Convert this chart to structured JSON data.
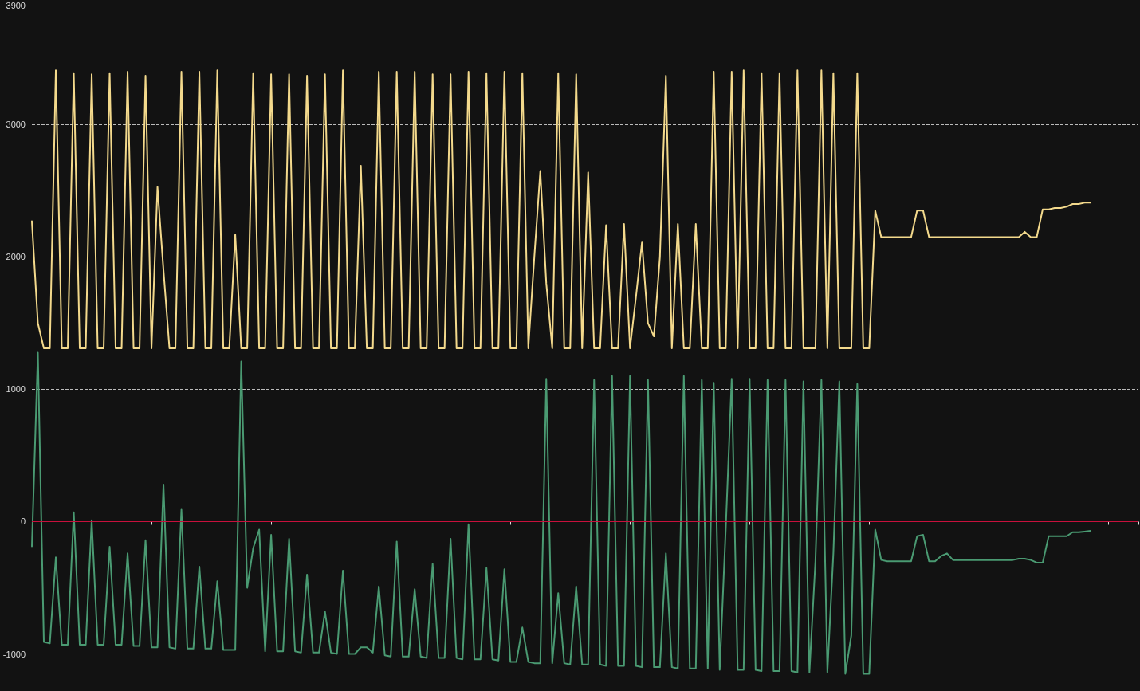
{
  "chart_data": {
    "type": "line",
    "grid": "y",
    "line_style": "solid",
    "tick_labels": "y",
    "categories": [
      null,
      null,
      null,
      null,
      null,
      null,
      null,
      null,
      null,
      null,
      null,
      null,
      null,
      null,
      null,
      null,
      null,
      null,
      null,
      null,
      null,
      null,
      null,
      null,
      null,
      null,
      null,
      null,
      null,
      null,
      null,
      null,
      null,
      null,
      null,
      null,
      null,
      null,
      null,
      null,
      null,
      null,
      null,
      null,
      null,
      null,
      null,
      null,
      null,
      null,
      null,
      null,
      null,
      null,
      null,
      null,
      null,
      null,
      null,
      null,
      null,
      null,
      null,
      null,
      null,
      null,
      null,
      null,
      null,
      null,
      null,
      null,
      null,
      null,
      null,
      null,
      null,
      null,
      null,
      null,
      null,
      null,
      null,
      null,
      null,
      null,
      null,
      null,
      null,
      null,
      null,
      null,
      null,
      null,
      null,
      null,
      null,
      null,
      null,
      null,
      null,
      null,
      null,
      null,
      null,
      null,
      null,
      null,
      null,
      null,
      null,
      null,
      null,
      null,
      null,
      null,
      null,
      null,
      null,
      null,
      null,
      null,
      null,
      null,
      null,
      null,
      null,
      null,
      null,
      null,
      null,
      null,
      null,
      null,
      null,
      null,
      null,
      null,
      null,
      null,
      null,
      null,
      null,
      null,
      null,
      null,
      null,
      null,
      null,
      null,
      null,
      null,
      null,
      null,
      null,
      null,
      null,
      null,
      null,
      null,
      null,
      null,
      null,
      null,
      null,
      null,
      null,
      null,
      null,
      null,
      null,
      null,
      null,
      null,
      null,
      null,
      null,
      null,
      null,
      null,
      null,
      null,
      null,
      null,
      null,
      null
    ],
    "ylim": [
      -1280,
      3900
    ],
    "yticks": [
      -1000,
      0,
      1000,
      2000,
      3000,
      3900
    ],
    "ref_lines": [
      {
        "axis": "y",
        "value": 0,
        "color": "#c8103c"
      }
    ],
    "series": [
      {
        "color": "#f3d98c",
        "values": [
          2270,
          1500,
          1310,
          1310,
          3410,
          1310,
          1310,
          3390,
          1310,
          1310,
          3380,
          1310,
          1310,
          3390,
          1310,
          1310,
          3400,
          1310,
          1310,
          3370,
          1310,
          2530,
          1900,
          1310,
          1310,
          3400,
          1310,
          1310,
          3400,
          1310,
          1310,
          3410,
          1310,
          1310,
          2170,
          1310,
          1310,
          3390,
          1310,
          1310,
          3380,
          1310,
          1310,
          3380,
          1310,
          1310,
          3370,
          1310,
          1310,
          3380,
          1310,
          1310,
          3410,
          1310,
          1310,
          2690,
          1310,
          1310,
          3400,
          1310,
          1310,
          3400,
          1310,
          1310,
          3400,
          1310,
          1310,
          3380,
          1310,
          1310,
          3380,
          1310,
          1310,
          3400,
          1310,
          1310,
          3390,
          1310,
          1310,
          3400,
          1310,
          1310,
          3390,
          1310,
          2000,
          2650,
          1800,
          1310,
          3390,
          1310,
          1310,
          3380,
          1310,
          2640,
          1310,
          1310,
          2240,
          1310,
          1310,
          2250,
          1310,
          1700,
          2110,
          1500,
          1400,
          2000,
          3370,
          1310,
          2250,
          1310,
          1310,
          2250,
          1310,
          1310,
          3400,
          1310,
          1310,
          3400,
          1310,
          3410,
          1310,
          1310,
          3390,
          1310,
          1310,
          3390,
          1310,
          1310,
          3410,
          1310,
          1310,
          1310,
          3410,
          1310,
          3390,
          1310,
          1310,
          1310,
          3390,
          1310,
          1310,
          2350,
          2150,
          2150,
          2150,
          2150,
          2150,
          2150,
          2350,
          2350,
          2150,
          2150,
          2150,
          2150,
          2150,
          2150,
          2150,
          2150,
          2150,
          2150,
          2150,
          2150,
          2150,
          2150,
          2150,
          2150,
          2190,
          2150,
          2150,
          2360,
          2360,
          2370,
          2370,
          2380,
          2400,
          2400,
          2410,
          2410,
          null,
          null,
          null,
          null,
          null,
          null,
          null,
          null
        ]
      },
      {
        "color": "#4a9a72",
        "values": [
          -187,
          1277,
          -910,
          -920,
          -270,
          -930,
          -930,
          70,
          -930,
          -930,
          10,
          -930,
          -930,
          -190,
          -930,
          -930,
          -240,
          -940,
          -940,
          -140,
          -950,
          -950,
          280,
          -950,
          -960,
          90,
          -960,
          -960,
          -340,
          -960,
          -960,
          -450,
          -970,
          -970,
          -970,
          1210,
          -500,
          -200,
          -60,
          -980,
          -100,
          -980,
          -980,
          -130,
          -980,
          -990,
          -400,
          -990,
          -990,
          -680,
          -990,
          -1000,
          -370,
          -1000,
          -1000,
          -950,
          -950,
          -990,
          -490,
          -1010,
          -1020,
          -150,
          -1020,
          -1020,
          -510,
          -1020,
          -1030,
          -320,
          -1030,
          -1030,
          -130,
          -1030,
          -1040,
          -20,
          -1040,
          -1040,
          -350,
          -1040,
          -1050,
          -360,
          -1060,
          -1060,
          -800,
          -1060,
          -1070,
          -1070,
          1080,
          -1070,
          -540,
          -1070,
          -1080,
          -490,
          -1080,
          -1080,
          1070,
          -1080,
          -1090,
          1100,
          -1090,
          -1090,
          1100,
          -1090,
          -1100,
          1070,
          -1100,
          -1100,
          -240,
          -1100,
          -1110,
          1100,
          -1110,
          -1110,
          1070,
          -1110,
          1050,
          -1120,
          -60,
          1080,
          -1120,
          -1120,
          1080,
          -1120,
          -1130,
          1070,
          -1130,
          -1130,
          1070,
          -1130,
          -1140,
          1060,
          -1140,
          -300,
          1070,
          -1140,
          -240,
          1060,
          -1150,
          -860,
          1040,
          -1150,
          -1150,
          -60,
          -290,
          -300,
          -300,
          -300,
          -300,
          -300,
          -110,
          -100,
          -300,
          -300,
          -260,
          -240,
          -290,
          -290,
          -290,
          -290,
          -290,
          -290,
          -290,
          -290,
          -290,
          -290,
          -290,
          -280,
          -280,
          -290,
          -310,
          -310,
          -110,
          -110,
          -110,
          -110,
          -80,
          -80,
          -75,
          -70,
          null,
          null,
          null,
          null,
          null,
          null,
          null,
          null
        ]
      }
    ]
  }
}
